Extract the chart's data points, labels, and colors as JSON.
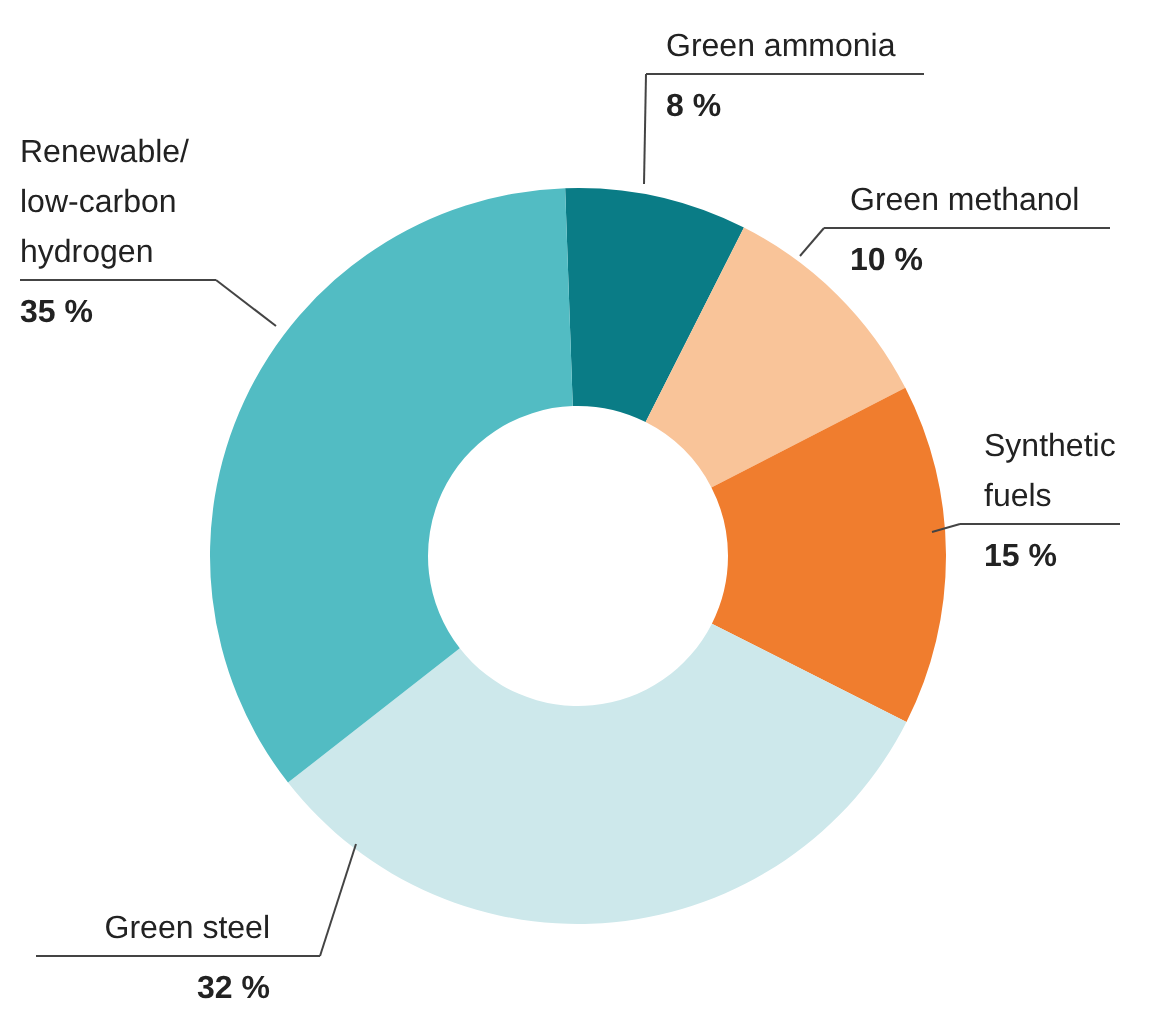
{
  "chart_data": {
    "type": "donut",
    "categories": [
      "Green ammonia",
      "Green methanol",
      "Synthetic\nfuels",
      "Green steel",
      "Renewable/\nlow-carbon\nhydrogen"
    ],
    "values": [
      8,
      10,
      15,
      32,
      35
    ],
    "colors": [
      "#0a7c86",
      "#f9c499",
      "#f07d2e",
      "#cde8eb",
      "#52bcc3"
    ],
    "value_labels": [
      "8 %",
      "10 %",
      "15 %",
      "32 %",
      "35 %"
    ],
    "legend": false
  }
}
